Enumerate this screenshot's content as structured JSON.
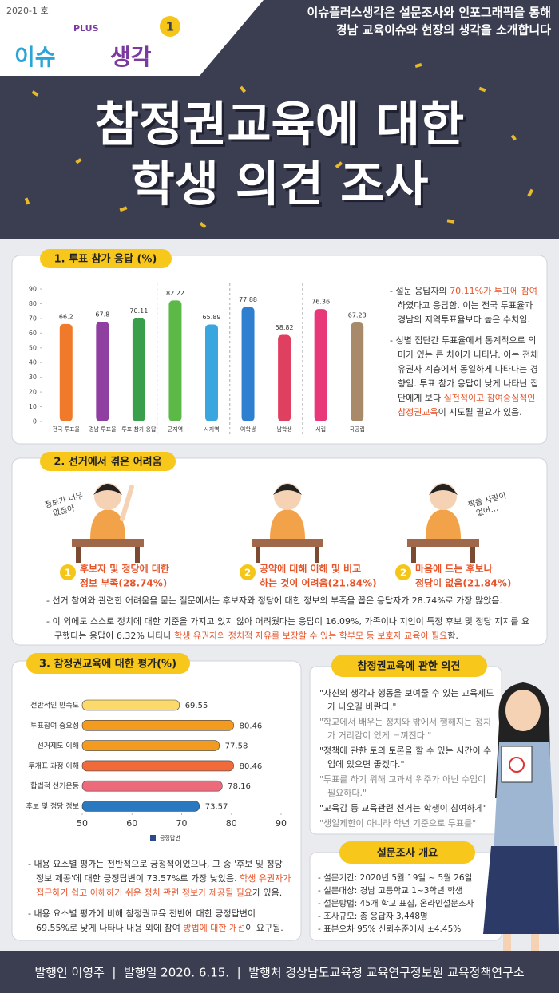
{
  "header": {
    "issue": "2020-1 호",
    "logo_main": "이슈",
    "logo_plus": "PLUS",
    "logo_sub": "생각",
    "number": "1",
    "tagline": [
      "이슈플러스생각은 설문조사와 인포그래픽을 통해",
      "경남 교육이슈와 현장의 생각을 소개합니다"
    ],
    "title": [
      "참정권교육에 대한",
      "학생 의견 조사"
    ]
  },
  "chart_data": [
    {
      "type": "bar",
      "title": "1. 투표 참가 응답 (%)",
      "categories": [
        "전국 투표율",
        "경남 투표율",
        "투표 참가 응답",
        "군지역",
        "시지역",
        "여학생",
        "남학생",
        "사립",
        "국공립"
      ],
      "values": [
        66.2,
        67.8,
        70.11,
        82.22,
        65.89,
        77.88,
        58.82,
        76.36,
        67.23
      ],
      "colors": [
        "#f07a2a",
        "#8e3fa0",
        "#3a9f4a",
        "#5cb847",
        "#39a6e0",
        "#2f7fd0",
        "#e04060",
        "#e8387a",
        "#a88a6a"
      ],
      "ylim": [
        0,
        90
      ],
      "yticks": [
        0,
        10,
        20,
        30,
        40,
        50,
        60,
        70,
        80,
        90
      ]
    },
    {
      "type": "barh",
      "title": "3. 참정권교육에 대한 평가(%)",
      "categories": [
        "전반적인 만족도",
        "투표참여 중요성",
        "선거제도 이해",
        "투개표 과정 이해",
        "합법적 선거운동",
        "후보 및 정당 정보"
      ],
      "series": [
        {
          "name": "긍정답변",
          "color": "#2a4a8a",
          "values": [
            69.55,
            80.46,
            77.58,
            80.46,
            78.16,
            73.57
          ]
        }
      ],
      "colors": [
        "#fbd96b",
        "#f39b1e",
        "#f39b1e",
        "#f06a3a",
        "#ec6a7a",
        "#2a78c0"
      ],
      "xlim": [
        50,
        90
      ],
      "xticks": [
        50,
        60,
        70,
        80,
        90
      ]
    }
  ],
  "section1": {
    "bullets": [
      [
        {
          "text": "- 설문 응답자의 "
        },
        {
          "text": "70.11%가 투표에 참여",
          "color": "#e8542a"
        },
        {
          "text": "하였다고 응답함. 이는 전국 투표율과 경남의 지역투표율보다 높은 수치임."
        }
      ],
      [
        {
          "text": "- 성별 집단간 투표율에서 통계적으로 의미가 있는 큰 차이가 나타남. 이는 전체 유권자 계층에서 동일하게 나타나는 경향임. 투표 참가 응답이 낮게 나타난 집단에게 보다 "
        },
        {
          "text": "실천적이고 참여중심적인 참정권교육",
          "color": "#e8542a"
        },
        {
          "text": "이 시도될 필요가 있음."
        }
      ]
    ]
  },
  "section2": {
    "title": "2. 선거에서 겪은 어려움",
    "items": [
      {
        "num": "1",
        "label": [
          "후보자 및 정당에 대한",
          "정보 부족(28.74%)"
        ],
        "bubble": [
          "정보가 너무",
          "없잖아"
        ]
      },
      {
        "num": "2",
        "label": [
          "공약에 대해 이해 및 비교",
          "하는 것이 어려움(21.84%)"
        ]
      },
      {
        "num": "2",
        "label": [
          "마음에 드는 후보나",
          "정당이 없음(21.84%)"
        ],
        "bubble": [
          "찍을 사람이",
          "없어..."
        ]
      }
    ],
    "bullets": [
      [
        {
          "text": "- 선거 참여와 관련한 어려움을 묻는 질문에서는 후보자와 정당에 대한 정보의 부족을 꼽은 응답자가 28.74%로 가장 많았음."
        }
      ],
      [
        {
          "text": "- 이 외에도 스스로 정치에 대한 기준을 가지고 있지 않아 어려웠다는 응답이 16.09%, 가족이나 지인이 특정 후보 및 정당 지지를 요구했다는 응답이 6.32% 나타나 "
        },
        {
          "text": "학생 유권자의 정치적 자유를 보장할 수 있는 학부모 등 보호자 교육이 필요",
          "color": "#e8542a"
        },
        {
          "text": "함."
        }
      ]
    ]
  },
  "section3": {
    "bullets": [
      [
        {
          "text": "- 내용 요소별 평가는 전반적으로 긍정적이었으나, 그 중 '후보 및 정당 정보 제공'에 대한 긍정답변이 73.57%로 가장 낮았음. "
        },
        {
          "text": "학생 유권자가 접근하기 쉽고 이해하기 쉬운 정치 관련 정보가 제공될 필요",
          "color": "#e8542a"
        },
        {
          "text": "가 있음."
        }
      ],
      [
        {
          "text": "- 내용 요소별 평가에 비해 참정권교육 전반에 대한 긍정답변이 69.55%로 낮게 나타나 내용 외에 참여 "
        },
        {
          "text": "방법에 대한 개선",
          "color": "#e8542a"
        },
        {
          "text": "이 요구됨."
        }
      ]
    ]
  },
  "opinion": {
    "title": "참정권교육에 관한 의견",
    "quotes": [
      {
        "text": "\"자신의 생각과 행동을 보여줄 수 있는 교육제도가 나오길 바란다.\"",
        "color": "#333333"
      },
      {
        "text": "\"학교에서 배우는 정치와 밖에서 행해지는 정치가 거리감이 있게 느껴진다.\"",
        "color": "#8a8a8a"
      },
      {
        "text": "\"정책에 관한 토의 토론을 할 수 있는 시간이 수업에 있으면 좋겠다.\"",
        "color": "#333333"
      },
      {
        "text": "\"투표를 하기 위해 교과서 위주가 아닌 수업이 필요하다.\"",
        "color": "#8a8a8a"
      },
      {
        "text": "\"교육감 등 교육관련 선거는 학생이 참여하게\"",
        "color": "#333333"
      },
      {
        "text": "\"생일제한이 아니라 학년 기준으로 투표를\"",
        "color": "#8a8a8a"
      }
    ]
  },
  "overview": {
    "title": "설문조사 개요",
    "items": [
      "- 설문기간: 2020년 5월 19일 ~ 5월 26일",
      "- 설문대상: 경남 고등학교 1~3학년 학생",
      "- 설문방법: 45개 학교 표집, 온라인설문조사",
      "- 조사규모: 총 응답자 3,448명",
      "- 표본오차 95% 신뢰수준에서 ±4.45%"
    ]
  },
  "footer": "발행인 이영주  |  발행일 2020. 6.15.  |  발행처 경상남도교육청 교육연구정보원 교육정책연구소"
}
